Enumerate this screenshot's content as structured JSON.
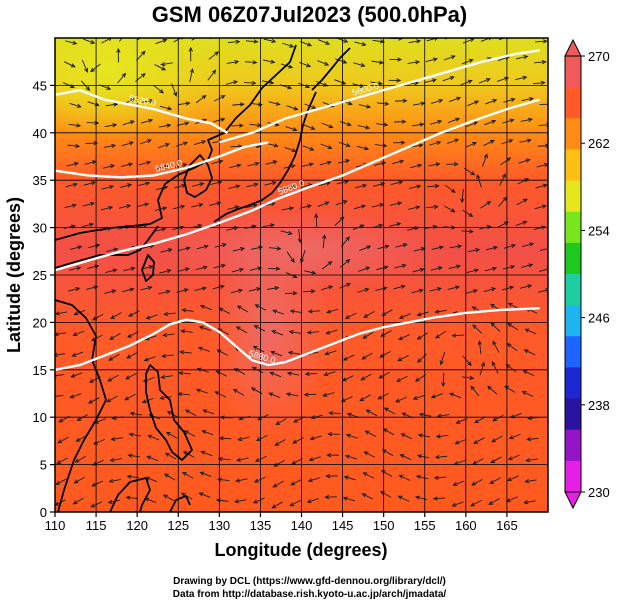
{
  "title": "GSM 06Z07Jul2023 (500.0hPa)",
  "xlabel": "Longitude (degrees)",
  "ylabel": "Latitude  (degrees)",
  "credits": [
    "Drawing by DCL (https://www.gfd-dennou.org/library/dcl/)",
    "Data from http://database.rish.kyoto-u.ac.jp/arch/jmadata/"
  ],
  "x_ticks": [
    "110",
    "115",
    "120",
    "125",
    "130",
    "135",
    "140",
    "145",
    "150",
    "155",
    "160",
    "165"
  ],
  "y_ticks": [
    "0",
    "5",
    "10",
    "15",
    "20",
    "25",
    "30",
    "35",
    "40",
    "45"
  ],
  "colorbar": {
    "ticks": [
      "270",
      "262",
      "254",
      "246",
      "238",
      "230"
    ],
    "colors": [
      "#f05a5a",
      "#ff5a28",
      "#ff8c14",
      "#ffbe14",
      "#e6e61e",
      "#78e61e",
      "#1ec81e",
      "#1ecda0",
      "#1eb4f0",
      "#1e64ff",
      "#1e28d2",
      "#2814a0",
      "#9614c8",
      "#e61ee6"
    ]
  },
  "contour_labels": [
    "5520.0",
    "5600.0",
    "5840.0",
    "5880.0",
    "5880.0"
  ],
  "chart_data": {
    "type": "map",
    "xlim": [
      110,
      170
    ],
    "ylim": [
      0,
      50
    ],
    "colorbar_range": [
      230,
      270
    ],
    "contours": [
      {
        "label": "5520.0",
        "points": [
          [
            110,
            44
          ],
          [
            113,
            44.5
          ],
          [
            116,
            43.5
          ],
          [
            119,
            43
          ],
          [
            122,
            42.5
          ],
          [
            126,
            41.5
          ],
          [
            129,
            41
          ],
          [
            131,
            40
          ]
        ]
      },
      {
        "label": "5600.0",
        "points": [
          [
            130,
            39
          ],
          [
            134,
            40
          ],
          [
            138,
            41.5
          ],
          [
            142,
            42.5
          ],
          [
            146,
            43.5
          ],
          [
            150,
            44.5
          ],
          [
            154,
            45.5
          ],
          [
            158,
            46.5
          ],
          [
            162,
            47.5
          ],
          [
            166,
            48.3
          ],
          [
            169,
            48.7
          ]
        ]
      },
      {
        "label": "5840.0",
        "points": [
          [
            110,
            36
          ],
          [
            114,
            35.5
          ],
          [
            118,
            35.3
          ],
          [
            122,
            35.5
          ],
          [
            126,
            36.3
          ],
          [
            130,
            37.5
          ],
          [
            133,
            38.5
          ],
          [
            136,
            39
          ]
        ]
      },
      {
        "label": "5880.0",
        "points": [
          [
            110,
            25.5
          ],
          [
            114,
            26.5
          ],
          [
            118,
            27.5
          ],
          [
            122,
            28.3
          ],
          [
            126,
            29.3
          ],
          [
            130,
            30.5
          ],
          [
            134,
            31.8
          ],
          [
            137,
            33
          ],
          [
            141,
            34.3
          ],
          [
            145,
            35.5
          ],
          [
            149,
            37
          ],
          [
            153,
            38.5
          ],
          [
            157,
            40
          ],
          [
            161,
            41.3
          ],
          [
            165,
            42.5
          ],
          [
            169,
            43.5
          ]
        ]
      },
      {
        "label": "5880.0",
        "points": [
          [
            110,
            15
          ],
          [
            113,
            15.5
          ],
          [
            116,
            16.5
          ],
          [
            119,
            17.5
          ],
          [
            122,
            18.8
          ],
          [
            124,
            19.8
          ],
          [
            126,
            20.3
          ],
          [
            128,
            20
          ],
          [
            130,
            19
          ],
          [
            132,
            17.5
          ],
          [
            134,
            16
          ],
          [
            136,
            15.5
          ],
          [
            138,
            15.8
          ],
          [
            141,
            16.8
          ],
          [
            144,
            17.8
          ],
          [
            147,
            18.8
          ],
          [
            150,
            19.5
          ],
          [
            153,
            20
          ],
          [
            156,
            20.5
          ],
          [
            160,
            21
          ],
          [
            164,
            21.3
          ],
          [
            169,
            21.5
          ]
        ]
      }
    ],
    "vortices": [
      [
        116,
        46
      ],
      [
        141,
        27
      ],
      [
        161,
        33
      ],
      [
        160,
        17
      ],
      [
        125,
        45
      ]
    ]
  }
}
